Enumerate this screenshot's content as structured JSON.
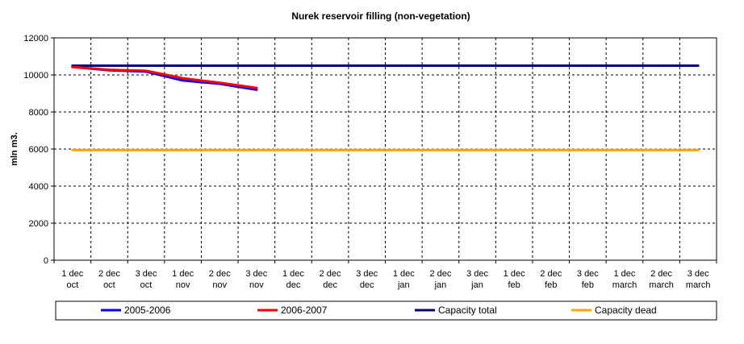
{
  "chart_data": {
    "type": "line",
    "title": "Nurek reservoir filling (non-vegetation)",
    "xlabel": "",
    "ylabel": "mln m3.",
    "ylim": [
      0,
      12000
    ],
    "yticks": [
      0,
      2000,
      4000,
      6000,
      8000,
      10000,
      12000
    ],
    "grid": true,
    "legend_position": "bottom",
    "categories": [
      [
        "1 dec",
        "oct"
      ],
      [
        "2 dec",
        "oct"
      ],
      [
        "3 dec",
        "oct"
      ],
      [
        "1 dec",
        "nov"
      ],
      [
        "2 dec",
        "nov"
      ],
      [
        "3 dec",
        "nov"
      ],
      [
        "1 dec",
        "dec"
      ],
      [
        "2 dec",
        "dec"
      ],
      [
        "3 dec",
        "dec"
      ],
      [
        "1 dec",
        "jan"
      ],
      [
        "2 dec",
        "jan"
      ],
      [
        "3 dec",
        "jan"
      ],
      [
        "1 dec",
        "feb"
      ],
      [
        "2 dec",
        "feb"
      ],
      [
        "3 dec",
        "feb"
      ],
      [
        "1 dec",
        "march"
      ],
      [
        "2 dec",
        "march"
      ],
      [
        "3 dec",
        "march"
      ]
    ],
    "series": [
      {
        "name": "2005-2006",
        "color": "#0000ff",
        "values": [
          10430,
          10250,
          10180,
          9700,
          9520,
          9200,
          null,
          null,
          null,
          null,
          null,
          null,
          null,
          null,
          null,
          null,
          null,
          null
        ]
      },
      {
        "name": "2006-2007",
        "color": "#ff0000",
        "values": [
          10420,
          10280,
          10220,
          9820,
          9580,
          9300,
          null,
          null,
          null,
          null,
          null,
          null,
          null,
          null,
          null,
          null,
          null,
          null
        ]
      },
      {
        "name": "Capacity total",
        "color": "#000080",
        "values": [
          10500,
          10500,
          10500,
          10500,
          10500,
          10500,
          10500,
          10500,
          10500,
          10500,
          10500,
          10500,
          10500,
          10500,
          10500,
          10500,
          10500,
          10500
        ]
      },
      {
        "name": "Capacity dead",
        "color": "#ffa500",
        "values": [
          5950,
          5950,
          5950,
          5950,
          5950,
          5950,
          5950,
          5950,
          5950,
          5950,
          5950,
          5950,
          5950,
          5950,
          5950,
          5950,
          5950,
          5950
        ]
      }
    ]
  }
}
